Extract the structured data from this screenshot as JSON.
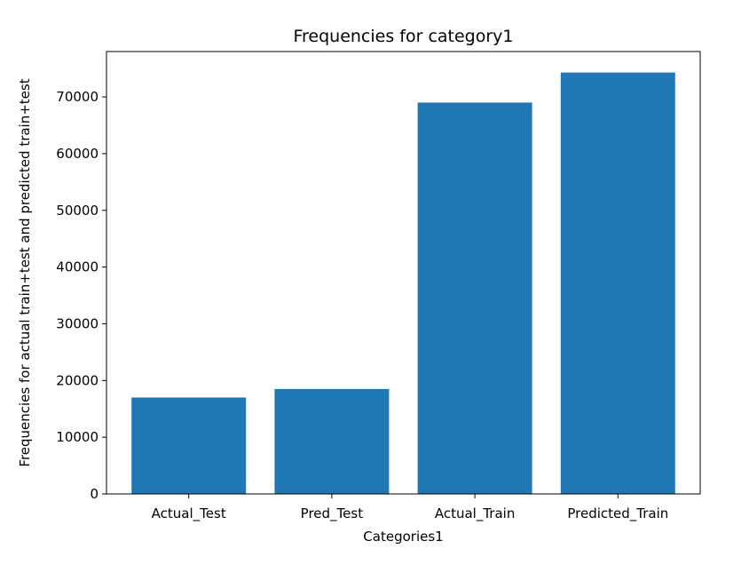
{
  "chart_data": {
    "type": "bar",
    "title": "Frequencies for category1",
    "xlabel": "Categories1",
    "ylabel": "Frequencies for actual train+test and predicted train+test",
    "categories": [
      "Actual_Test",
      "Pred_Test",
      "Actual_Train",
      "Predicted_Train"
    ],
    "values": [
      17000,
      18500,
      69000,
      74300
    ],
    "ylim": [
      0,
      78000
    ],
    "yticks": [
      0,
      10000,
      20000,
      30000,
      40000,
      50000,
      60000,
      70000
    ],
    "grid": false,
    "bar_color": "#1f77b4"
  }
}
